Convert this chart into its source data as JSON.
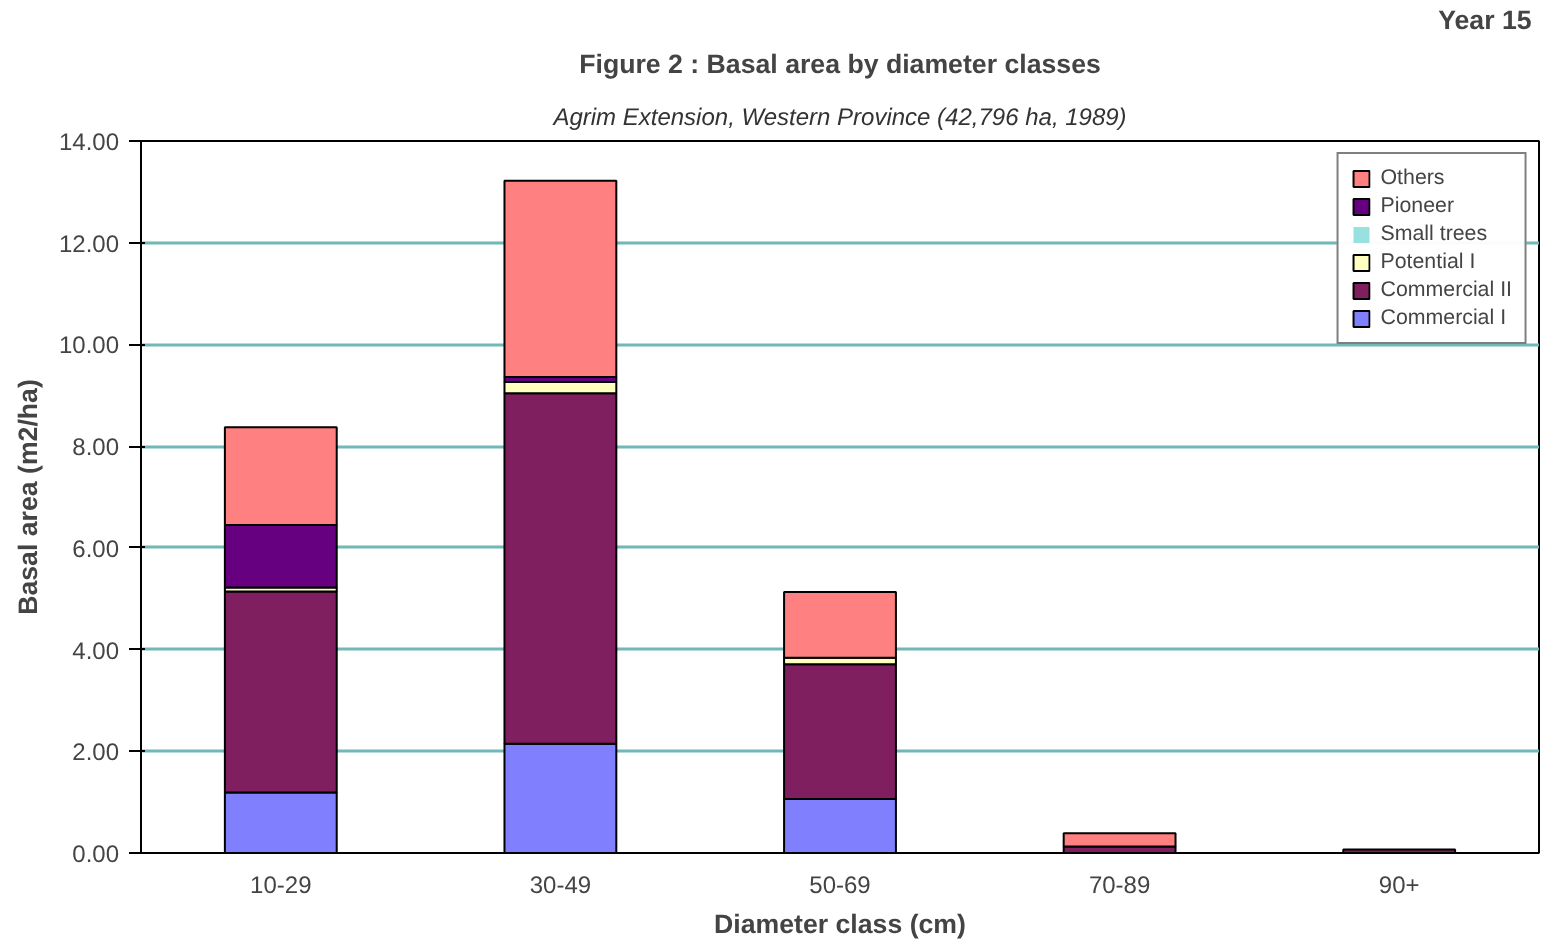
{
  "chart_data": {
    "type": "bar",
    "stacked": true,
    "title": "Figure 2 : Basal area by diameter classes",
    "subtitle": "Agrim Extension, Western Province (42,796 ha, 1989)",
    "annotations": [
      "Year  15"
    ],
    "xlabel": "Diameter class (cm)",
    "ylabel": "Basal area (m2/ha)",
    "categories": [
      "10-29",
      "30-49",
      "50-69",
      "70-89",
      "90+"
    ],
    "series": [
      {
        "name": "Commercial I",
        "color": "#8080ff",
        "values": [
          1.19,
          2.15,
          1.06,
          null,
          0
        ]
      },
      {
        "name": "Commercial II",
        "color": "#7f1f5f",
        "values": [
          3.95,
          6.89,
          2.65,
          0.13,
          0.07
        ]
      },
      {
        "name": "Potential I",
        "color": "#ffffc0",
        "values": [
          0.08,
          0.22,
          0.13,
          0,
          0
        ]
      },
      {
        "name": "Small trees",
        "color": "#99e0e0",
        "values": [
          0,
          0,
          0,
          0,
          0
        ]
      },
      {
        "name": "Pioneer",
        "color": "#660080",
        "values": [
          1.23,
          0.1,
          0,
          0,
          0
        ]
      },
      {
        "name": "Others",
        "color": "#ff8080",
        "values": [
          1.92,
          3.86,
          1.29,
          0.26,
          0
        ]
      }
    ],
    "ylim": [
      0,
      14
    ],
    "yticks": [
      {
        "value": 0,
        "label": "0.00"
      },
      {
        "value": 2,
        "label": "2.00"
      },
      {
        "value": 4,
        "label": "4.00"
      },
      {
        "value": 6,
        "label": "6.00"
      },
      {
        "value": 8,
        "label": "8.00"
      },
      {
        "value": 10,
        "label": "10.00"
      },
      {
        "value": 12,
        "label": "12.00"
      },
      {
        "value": 14,
        "label": "14.00"
      }
    ],
    "grid": "y",
    "legend": "top right"
  }
}
